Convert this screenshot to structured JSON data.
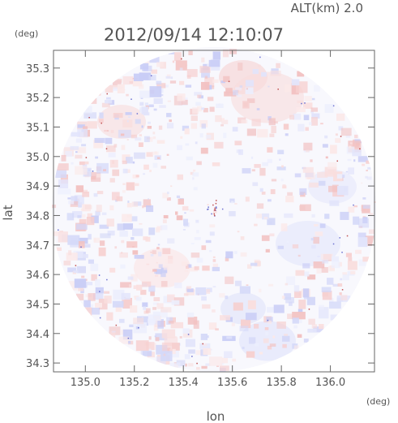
{
  "header": {
    "altitude_label": "ALT(km)  2.0",
    "timestamp": "2012/09/14  12:10:07"
  },
  "axes": {
    "y_unit": "(deg)",
    "x_unit": "(deg)",
    "xlabel": "lon",
    "ylabel": "lat",
    "x_ticks": [
      "135.0",
      "135.2",
      "135.4",
      "135.6",
      "135.8",
      "136.0"
    ],
    "y_ticks": [
      "35.3",
      "35.2",
      "35.1",
      "35.0",
      "34.9",
      "34.8",
      "34.7",
      "34.6",
      "34.5",
      "34.4",
      "34.3"
    ]
  },
  "chart_data": {
    "type": "heatmap",
    "x_tick_values": [
      135.0,
      135.2,
      135.4,
      135.6,
      135.8,
      136.0
    ],
    "y_tick_values": [
      35.3,
      35.2,
      35.1,
      35.0,
      34.9,
      34.8,
      34.7,
      34.6,
      34.5,
      34.4,
      34.3
    ],
    "xlim": [
      134.87,
      136.18
    ],
    "ylim": [
      34.27,
      35.36
    ],
    "grid": false,
    "colors": {
      "positive": "#f6c6c6",
      "negative": "#c8ccf8",
      "neutral": "#f7f7fc",
      "frame": "#666666"
    }
  }
}
